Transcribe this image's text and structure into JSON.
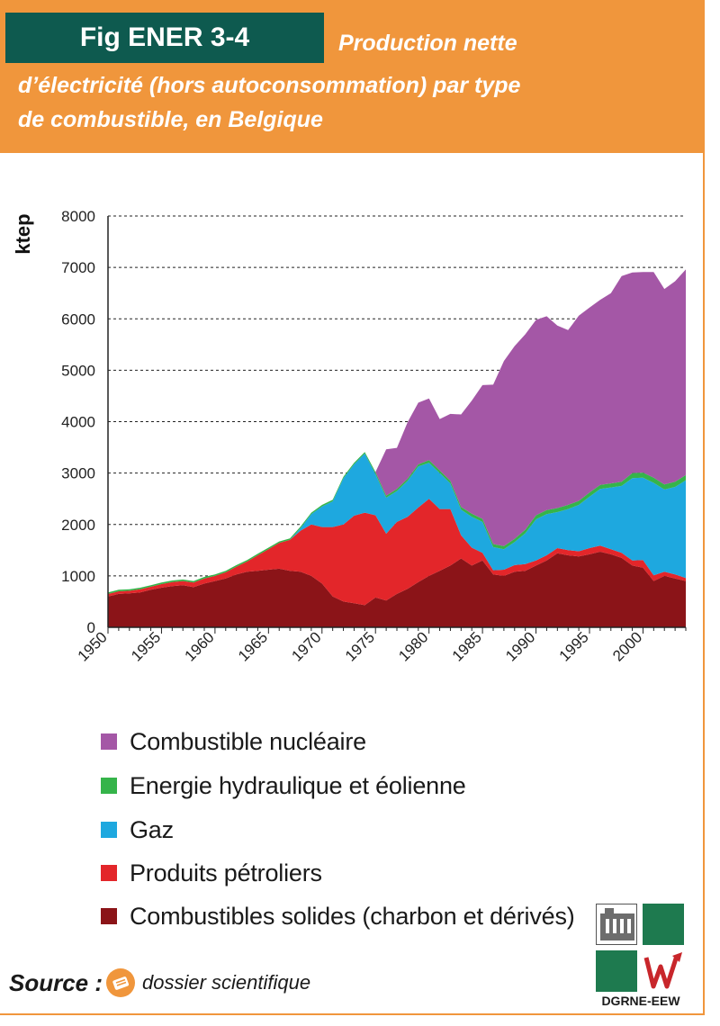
{
  "header": {
    "fig_label": "Fig ENER 3-4",
    "title_lines": [
      "Production nette",
      "d’électricité (hors autoconsommation) par type",
      "de combustible, en Belgique"
    ]
  },
  "colors": {
    "header_bg": "#f0963c",
    "fig_tab_bg": "#0e5a4f",
    "solid": "#8b1418",
    "petroleum": "#e3262a",
    "gas": "#1ea8df",
    "hydro": "#35b44a",
    "nuclear": "#a457a6"
  },
  "chart_data": {
    "type": "area",
    "stacked": true,
    "title": "Production nette d’électricité (hors autoconsommation) par type de combustible, en Belgique",
    "ylabel": "ktep",
    "xlabel": "",
    "ylim": [
      0,
      8000
    ],
    "yticks": [
      0,
      1000,
      2000,
      3000,
      4000,
      5000,
      6000,
      7000,
      8000
    ],
    "xticks": [
      1950,
      1955,
      1960,
      1965,
      1970,
      1975,
      1980,
      1985,
      1990,
      1995,
      2000
    ],
    "grid": "horizontal dashed",
    "legend_position": "below",
    "x": [
      1950,
      1951,
      1952,
      1953,
      1954,
      1955,
      1956,
      1957,
      1958,
      1959,
      1960,
      1961,
      1962,
      1963,
      1964,
      1965,
      1966,
      1967,
      1968,
      1969,
      1970,
      1971,
      1972,
      1973,
      1974,
      1975,
      1976,
      1977,
      1978,
      1979,
      1980,
      1981,
      1982,
      1983,
      1984,
      1985,
      1986,
      1987,
      1988,
      1989,
      1990,
      1991,
      1992,
      1993,
      1994,
      1995,
      1996,
      1997,
      1998,
      1999,
      2000,
      2001,
      2002,
      2003,
      2004
    ],
    "series": [
      {
        "name": "Combustibles solides (charbon et dérivés)",
        "values": [
          600,
          650,
          660,
          680,
          730,
          770,
          800,
          820,
          780,
          850,
          900,
          950,
          1030,
          1080,
          1100,
          1120,
          1140,
          1100,
          1080,
          1000,
          850,
          600,
          500,
          470,
          430,
          580,
          520,
          650,
          750,
          880,
          1000,
          1100,
          1200,
          1340,
          1200,
          1300,
          1030,
          1000,
          1080,
          1100,
          1200,
          1300,
          1440,
          1400,
          1380,
          1420,
          1470,
          1420,
          1350,
          1200,
          1160,
          900,
          1000,
          950,
          900
        ]
      },
      {
        "name": "Produits pétroliers",
        "values": [
          50,
          50,
          50,
          60,
          60,
          70,
          80,
          80,
          90,
          100,
          100,
          120,
          150,
          200,
          300,
          400,
          500,
          600,
          800,
          1000,
          1100,
          1350,
          1500,
          1700,
          1800,
          1600,
          1300,
          1400,
          1400,
          1450,
          1500,
          1200,
          1100,
          450,
          350,
          150,
          80,
          120,
          130,
          130,
          100,
          100,
          100,
          100,
          100,
          120,
          120,
          100,
          100,
          100,
          150,
          110,
          80,
          80,
          60
        ]
      },
      {
        "name": "Gaz",
        "values": [
          0,
          0,
          0,
          0,
          0,
          0,
          0,
          0,
          0,
          0,
          0,
          0,
          0,
          0,
          0,
          0,
          0,
          0,
          50,
          200,
          400,
          500,
          900,
          1000,
          1150,
          800,
          700,
          600,
          700,
          800,
          700,
          700,
          500,
          500,
          600,
          600,
          450,
          400,
          450,
          600,
          800,
          800,
          700,
          800,
          900,
          1000,
          1100,
          1200,
          1300,
          1600,
          1600,
          1800,
          1600,
          1700,
          1900
        ]
      },
      {
        "name": "Energie hydraulique et éolienne",
        "values": [
          30,
          30,
          30,
          30,
          30,
          30,
          30,
          30,
          30,
          30,
          30,
          30,
          30,
          30,
          30,
          30,
          30,
          30,
          30,
          30,
          30,
          30,
          30,
          30,
          30,
          40,
          40,
          40,
          40,
          40,
          50,
          50,
          50,
          50,
          60,
          60,
          60,
          60,
          60,
          70,
          80,
          80,
          80,
          80,
          80,
          80,
          80,
          80,
          80,
          100,
          100,
          100,
          100,
          100,
          100
        ]
      },
      {
        "name": "Combustible nucléaire",
        "values": [
          0,
          0,
          0,
          0,
          0,
          0,
          0,
          0,
          0,
          0,
          0,
          0,
          0,
          0,
          0,
          0,
          0,
          0,
          0,
          0,
          0,
          0,
          0,
          0,
          0,
          0,
          900,
          800,
          1100,
          1200,
          1200,
          1000,
          1300,
          1800,
          2200,
          2600,
          3100,
          3600,
          3750,
          3800,
          3800,
          3770,
          3550,
          3400,
          3600,
          3600,
          3600,
          3700,
          4000,
          3900,
          3900,
          4000,
          3800,
          3900,
          4000
        ]
      }
    ]
  },
  "legend": [
    {
      "label": "Combustible nucléaire",
      "color_key": "nuclear"
    },
    {
      "label": "Energie hydraulique et éolienne",
      "color_key": "hydro"
    },
    {
      "label": " Gaz",
      "color_key": "gas"
    },
    {
      "label": "Produits pétroliers",
      "color_key": "petroleum"
    },
    {
      "label": "Combustibles solides (charbon et dérivés)",
      "color_key": "solid"
    }
  ],
  "source": {
    "label": "Source :",
    "text": "dossier scientifique",
    "icon": "document-icon"
  },
  "logo": {
    "text": "DGRNE-EEW",
    "icon": "dgrne-eew-logo"
  }
}
